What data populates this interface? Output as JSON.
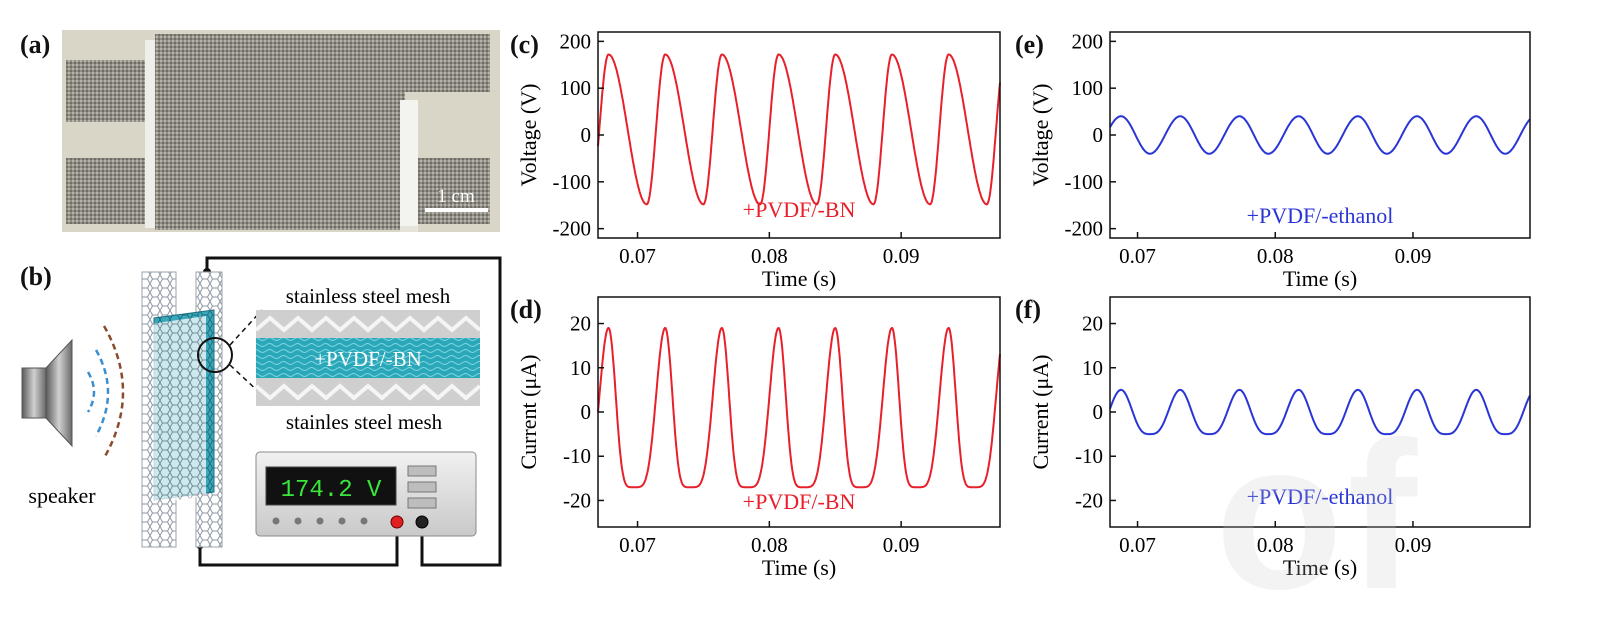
{
  "figure": {
    "panels": {
      "a": "(a)",
      "b": "(b)",
      "c": "(c)",
      "d": "(d)",
      "e": "(e)",
      "f": "(f)"
    },
    "photo": {
      "scale_bar": "1 cm"
    },
    "schematic": {
      "top_mesh_label": "stainless steel mesh",
      "bottom_mesh_label": "stainles steel mesh",
      "layer_label": "+PVDF/-BN",
      "speaker_label": "speaker",
      "meter_reading": "174.2 V"
    },
    "watermark": "of"
  },
  "colors": {
    "red": "#e8202a",
    "blue": "#2a35d6",
    "teal": "#2aa7b8",
    "brown": "#8b4a2b"
  },
  "chart_data": [
    {
      "id": "c",
      "type": "line",
      "xlabel": "Time (s)",
      "ylabel": "Voltage (V)",
      "xlim": [
        0.067,
        0.0975
      ],
      "ylim": [
        -220,
        220
      ],
      "xticks": [
        0.07,
        0.08,
        0.09
      ],
      "xtick_labels": [
        "0.07",
        "0.08",
        "0.09"
      ],
      "yticks": [
        200,
        100,
        0,
        -100,
        -200
      ],
      "ytick_labels": [
        "200",
        "100",
        "0",
        "-100",
        "-200"
      ],
      "annotation": "+PVDF/-BN",
      "color": "#e8202a",
      "waveform": {
        "period": 0.0043,
        "peak_t0": 0.0721,
        "max": 172,
        "min": -148,
        "trough_offset": 0.0029,
        "sharpness": 1.0
      }
    },
    {
      "id": "d",
      "type": "line",
      "xlabel": "Time (s)",
      "ylabel": "Current (μA)",
      "xlim": [
        0.067,
        0.0975
      ],
      "ylim": [
        -26,
        26
      ],
      "xticks": [
        0.07,
        0.08,
        0.09
      ],
      "xtick_labels": [
        "0.07",
        "0.08",
        "0.09"
      ],
      "yticks": [
        20,
        10,
        0,
        -10,
        -20
      ],
      "ytick_labels": [
        "20",
        "10",
        "0",
        "-10",
        "-20"
      ],
      "annotation": "+PVDF/-BN",
      "color": "#e8202a",
      "waveform": {
        "period": 0.0043,
        "peak_t0": 0.0721,
        "max": 19,
        "min": -17,
        "trough_offset": 0.0019,
        "sharpness": 2.6
      }
    },
    {
      "id": "e",
      "type": "line",
      "xlabel": "Time (s)",
      "ylabel": "Voltage (V)",
      "xlim": [
        0.068,
        0.0985
      ],
      "ylim": [
        -220,
        220
      ],
      "xticks": [
        0.07,
        0.08,
        0.09
      ],
      "xtick_labels": [
        "0.07",
        "0.08",
        "0.09"
      ],
      "yticks": [
        200,
        100,
        0,
        -100,
        -200
      ],
      "ytick_labels": [
        "200",
        "100",
        "0",
        "-100",
        "-200"
      ],
      "annotation": "+PVDF/-ethanol",
      "color": "#2a35d6",
      "waveform": {
        "period": 0.0043,
        "peak_t0": 0.0731,
        "max": 40,
        "min": -40,
        "trough_offset": 0.0021,
        "sharpness": 1.0
      }
    },
    {
      "id": "f",
      "type": "line",
      "xlabel": "Time (s)",
      "ylabel": "Current (μA)",
      "xlim": [
        0.068,
        0.0985
      ],
      "ylim": [
        -26,
        26
      ],
      "xticks": [
        0.07,
        0.08,
        0.09
      ],
      "xtick_labels": [
        "0.07",
        "0.08",
        "0.09"
      ],
      "yticks": [
        20,
        10,
        0,
        -10,
        -20
      ],
      "ytick_labels": [
        "20",
        "10",
        "0",
        "-10",
        "-20"
      ],
      "annotation": "+PVDF/-ethanol",
      "color": "#2a35d6",
      "waveform": {
        "period": 0.0043,
        "peak_t0": 0.0731,
        "max": 5,
        "min": -5,
        "trough_offset": 0.0021,
        "sharpness": 1.6
      }
    }
  ]
}
